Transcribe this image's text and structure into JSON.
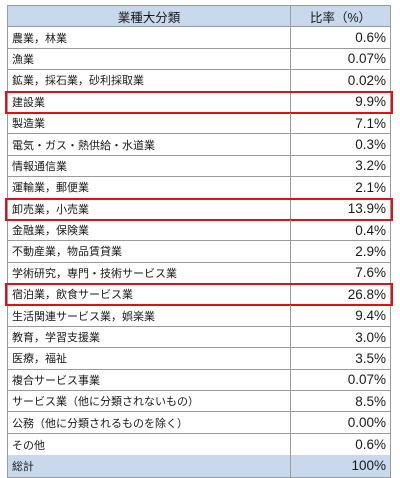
{
  "table": {
    "header": {
      "name": "業種大分類",
      "value": "比率（%）"
    },
    "rows": [
      {
        "name": "農業，林業",
        "value": "0.6%",
        "highlighted": false
      },
      {
        "name": "漁業",
        "value": "0.07%",
        "highlighted": false
      },
      {
        "name": "鉱業，採石業，砂利採取業",
        "value": "0.02%",
        "highlighted": false
      },
      {
        "name": "建設業",
        "value": "9.9%",
        "highlighted": true
      },
      {
        "name": "製造業",
        "value": "7.1%",
        "highlighted": false
      },
      {
        "name": "電気・ガス・熱供給・水道業",
        "value": "0.3%",
        "highlighted": false
      },
      {
        "name": "情報通信業",
        "value": "3.2%",
        "highlighted": false
      },
      {
        "name": "運輸業，郵便業",
        "value": "2.1%",
        "highlighted": false
      },
      {
        "name": "卸売業，小売業",
        "value": "13.9%",
        "highlighted": true
      },
      {
        "name": "金融業，保険業",
        "value": "0.4%",
        "highlighted": false
      },
      {
        "name": "不動産業，物品賃貸業",
        "value": "2.9%",
        "highlighted": false
      },
      {
        "name": "学術研究，専門・技術サービス業",
        "value": "7.6%",
        "highlighted": false
      },
      {
        "name": "宿泊業，飲食サービス業",
        "value": "26.8%",
        "highlighted": true
      },
      {
        "name": "生活関連サービス業，娯楽業",
        "value": "9.4%",
        "highlighted": false
      },
      {
        "name": "教育，学習支援業",
        "value": "3.0%",
        "highlighted": false
      },
      {
        "name": "医療，福祉",
        "value": "3.5%",
        "highlighted": false
      },
      {
        "name": "複合サービス事業",
        "value": "0.07%",
        "highlighted": false
      },
      {
        "name": "サービス業（他に分類されないもの）",
        "value": "8.5%",
        "highlighted": false
      },
      {
        "name": "公務（他に分類されるものを除く）",
        "value": "0.00%",
        "highlighted": false
      },
      {
        "name": "その他",
        "value": "0.6%",
        "highlighted": false
      }
    ],
    "total": {
      "name": "総計",
      "value": "100%"
    }
  },
  "colors": {
    "header_bg": "#c8d9ee",
    "highlight_border": "#e0101a",
    "grid": "#9b9b9b"
  }
}
